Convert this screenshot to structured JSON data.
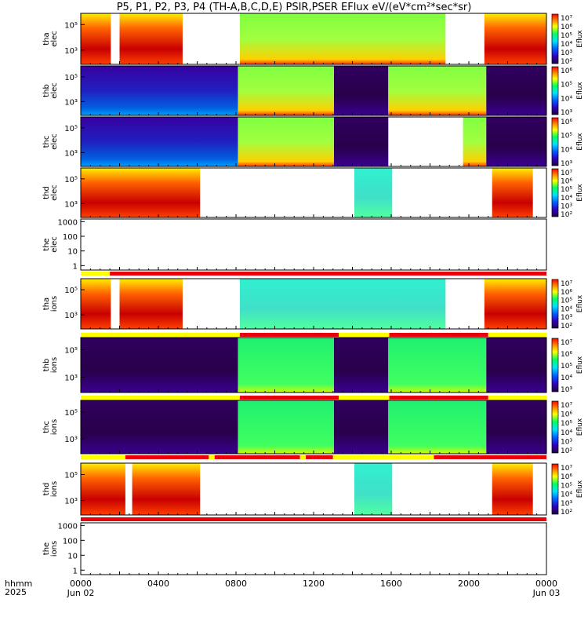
{
  "title": "P5, P1, P2, P3, P4 (TH-A,B,C,D,E) PSIR,PSER EFlux eV/(eV*cm²*sec*sr)",
  "colors": {
    "red": "#e8000b",
    "yellow": "#ffff00",
    "black": "#000000"
  },
  "chart_data": {
    "type": "heatmap",
    "x_axis": {
      "label_row1": "hhmm",
      "label_row2": "2025",
      "ticks": [
        "0000",
        "0400",
        "0800",
        "1200",
        "1600",
        "2000",
        "0000"
      ],
      "tick_hours": [
        0,
        4,
        8,
        12,
        16,
        20,
        24
      ],
      "date_labels": [
        "Jun 02",
        "Jun 03"
      ],
      "range_hours": [
        0,
        24
      ]
    },
    "colorbar_label": "Eflux",
    "panels": [
      {
        "name": "tha elec",
        "ylabel": [
          "tha",
          "elec"
        ],
        "yticks": [
          "10⁵",
          "10³"
        ],
        "colorbar_ticks": [
          "10⁷",
          "10⁶",
          "10⁵",
          "10⁴",
          "10³",
          "10²"
        ],
        "segments": [
          {
            "t0": 0.0,
            "t1": 1.55,
            "state": "plasma_sheet"
          },
          {
            "t0": 2.0,
            "t1": 5.25,
            "state": "plasma_sheet"
          },
          {
            "t0": 8.2,
            "t1": 18.8,
            "state": "sheath"
          },
          {
            "t0": 20.8,
            "t1": 24.0,
            "state": "plasma_sheet"
          }
        ]
      },
      {
        "name": "thb elec",
        "ylabel": [
          "thb",
          "elec"
        ],
        "yticks": [
          "10⁵",
          "10³"
        ],
        "colorbar_ticks": [
          "10⁶",
          "10⁵",
          "10⁴",
          "10³"
        ],
        "segments": [
          {
            "t0": 0.0,
            "t1": 8.1,
            "state": "lobe"
          },
          {
            "t0": 8.1,
            "t1": 13.05,
            "state": "sheath"
          },
          {
            "t0": 13.05,
            "t1": 15.85,
            "state": "dark"
          },
          {
            "t0": 15.85,
            "t1": 20.9,
            "state": "sheath"
          },
          {
            "t0": 20.9,
            "t1": 24.0,
            "state": "dark"
          }
        ]
      },
      {
        "name": "thc elec",
        "ylabel": [
          "thc",
          "elec"
        ],
        "yticks": [
          "10⁵",
          "10³"
        ],
        "colorbar_ticks": [
          "10⁶",
          "10⁵",
          "10⁴",
          "10³"
        ],
        "segments": [
          {
            "t0": 0.0,
            "t1": 8.1,
            "state": "lobe"
          },
          {
            "t0": 8.1,
            "t1": 13.05,
            "state": "sheath"
          },
          {
            "t0": 13.05,
            "t1": 15.85,
            "state": "dark"
          },
          {
            "t0": 19.7,
            "t1": 20.9,
            "state": "sheath"
          },
          {
            "t0": 20.9,
            "t1": 24.0,
            "state": "dark"
          }
        ]
      },
      {
        "name": "thd elec",
        "ylabel": [
          "thd",
          "elec"
        ],
        "yticks": [
          "10⁵",
          "10³"
        ],
        "colorbar_ticks": [
          "10⁷",
          "10⁶",
          "10⁵",
          "10⁴",
          "10³",
          "10²"
        ],
        "segments": [
          {
            "t0": 0.0,
            "t1": 6.15,
            "state": "plasma_sheet"
          },
          {
            "t0": 14.1,
            "t1": 16.05,
            "state": "sheath_light"
          },
          {
            "t0": 21.2,
            "t1": 23.3,
            "state": "plasma_sheet"
          }
        ]
      },
      {
        "name": "the elec",
        "ylabel": [
          "the",
          "elec"
        ],
        "yticks": [
          "1000",
          "100",
          "10",
          "1"
        ],
        "ylim": [
          0.5,
          1500
        ],
        "empty": true
      },
      {
        "name": "tha ions",
        "ylabel": [
          "tha",
          "ions"
        ],
        "yticks": [
          "10⁵",
          "10³"
        ],
        "colorbar_ticks": [
          "10⁷",
          "10⁶",
          "10⁵",
          "10⁴",
          "10³",
          "10²"
        ],
        "segments": [
          {
            "t0": 0.0,
            "t1": 1.55,
            "state": "plasma_sheet"
          },
          {
            "t0": 2.0,
            "t1": 5.25,
            "state": "plasma_sheet"
          },
          {
            "t0": 8.2,
            "t1": 18.8,
            "state": "sheath_light"
          },
          {
            "t0": 20.8,
            "t1": 24.0,
            "state": "plasma_sheet"
          }
        ]
      },
      {
        "name": "thb ions",
        "ylabel": [
          "thb",
          "ions"
        ],
        "yticks": [
          "10⁵",
          "10³"
        ],
        "colorbar_ticks": [
          "10⁷",
          "10⁶",
          "10⁵",
          "10⁴",
          "10³"
        ],
        "segments": [
          {
            "t0": 0.0,
            "t1": 8.1,
            "state": "dark"
          },
          {
            "t0": 8.1,
            "t1": 13.05,
            "state": "sheath_green"
          },
          {
            "t0": 13.05,
            "t1": 15.85,
            "state": "dark"
          },
          {
            "t0": 15.85,
            "t1": 20.9,
            "state": "sheath_green"
          },
          {
            "t0": 20.9,
            "t1": 24.0,
            "state": "dark"
          }
        ]
      },
      {
        "name": "thc ions",
        "ylabel": [
          "thc",
          "ions"
        ],
        "yticks": [
          "10⁵",
          "10³"
        ],
        "colorbar_ticks": [
          "10⁷",
          "10⁶",
          "10⁵",
          "10⁴",
          "10³",
          "10²"
        ],
        "segments": [
          {
            "t0": 0.0,
            "t1": 8.1,
            "state": "dark"
          },
          {
            "t0": 8.1,
            "t1": 13.05,
            "state": "sheath_green"
          },
          {
            "t0": 13.05,
            "t1": 15.85,
            "state": "dark"
          },
          {
            "t0": 15.85,
            "t1": 20.9,
            "state": "sheath_green"
          },
          {
            "t0": 20.9,
            "t1": 24.0,
            "state": "dark"
          }
        ]
      },
      {
        "name": "thd ions",
        "ylabel": [
          "thd",
          "ions"
        ],
        "yticks": [
          "10⁵",
          "10³"
        ],
        "colorbar_ticks": [
          "10⁷",
          "10⁶",
          "10⁵",
          "10⁴",
          "10³",
          "10²"
        ],
        "segments": [
          {
            "t0": 0.0,
            "t1": 2.3,
            "state": "plasma_sheet"
          },
          {
            "t0": 2.65,
            "t1": 6.15,
            "state": "plasma_sheet"
          },
          {
            "t0": 14.1,
            "t1": 16.05,
            "state": "sheath_light"
          },
          {
            "t0": 21.2,
            "t1": 23.3,
            "state": "plasma_sheet"
          }
        ]
      },
      {
        "name": "the ions",
        "ylabel": [
          "the",
          "ions"
        ],
        "yticks": [
          "1000",
          "100",
          "10",
          "1"
        ],
        "ylim": [
          0.5,
          1500
        ],
        "empty": true
      }
    ],
    "mode_bars": [
      {
        "after_panel": "the elec",
        "segments": [
          {
            "t0": 0,
            "t1": 1.5,
            "color": "yellow"
          },
          {
            "t0": 1.5,
            "t1": 24,
            "color": "red"
          }
        ]
      },
      {
        "after_panel": "tha ions",
        "segments": [
          {
            "t0": 0,
            "t1": 8.2,
            "color": "yellow"
          },
          {
            "t0": 8.2,
            "t1": 13.3,
            "color": "red"
          },
          {
            "t0": 13.3,
            "t1": 15.9,
            "color": "yellow"
          },
          {
            "t0": 15.9,
            "t1": 21.0,
            "color": "red"
          },
          {
            "t0": 21.0,
            "t1": 24,
            "color": "yellow"
          }
        ]
      },
      {
        "after_panel": "thb ions",
        "segments": [
          {
            "t0": 0,
            "t1": 8.2,
            "color": "yellow"
          },
          {
            "t0": 8.2,
            "t1": 13.3,
            "color": "red"
          },
          {
            "t0": 13.3,
            "t1": 15.9,
            "color": "yellow"
          },
          {
            "t0": 15.9,
            "t1": 21.0,
            "color": "red"
          },
          {
            "t0": 21.0,
            "t1": 24,
            "color": "yellow"
          }
        ]
      },
      {
        "after_panel": "thc ions",
        "segments": [
          {
            "t0": 0,
            "t1": 2.3,
            "color": "yellow"
          },
          {
            "t0": 2.3,
            "t1": 6.6,
            "color": "red"
          },
          {
            "t0": 6.6,
            "t1": 6.9,
            "color": "yellow"
          },
          {
            "t0": 6.9,
            "t1": 11.3,
            "color": "red"
          },
          {
            "t0": 11.3,
            "t1": 11.6,
            "color": "yellow"
          },
          {
            "t0": 11.6,
            "t1": 13.0,
            "color": "red"
          },
          {
            "t0": 13.0,
            "t1": 18.2,
            "color": "yellow"
          },
          {
            "t0": 18.2,
            "t1": 24,
            "color": "red"
          }
        ]
      },
      {
        "after_panel": "thd ions",
        "segments": [
          {
            "t0": 0,
            "t1": 24,
            "color": "red"
          }
        ]
      }
    ]
  }
}
